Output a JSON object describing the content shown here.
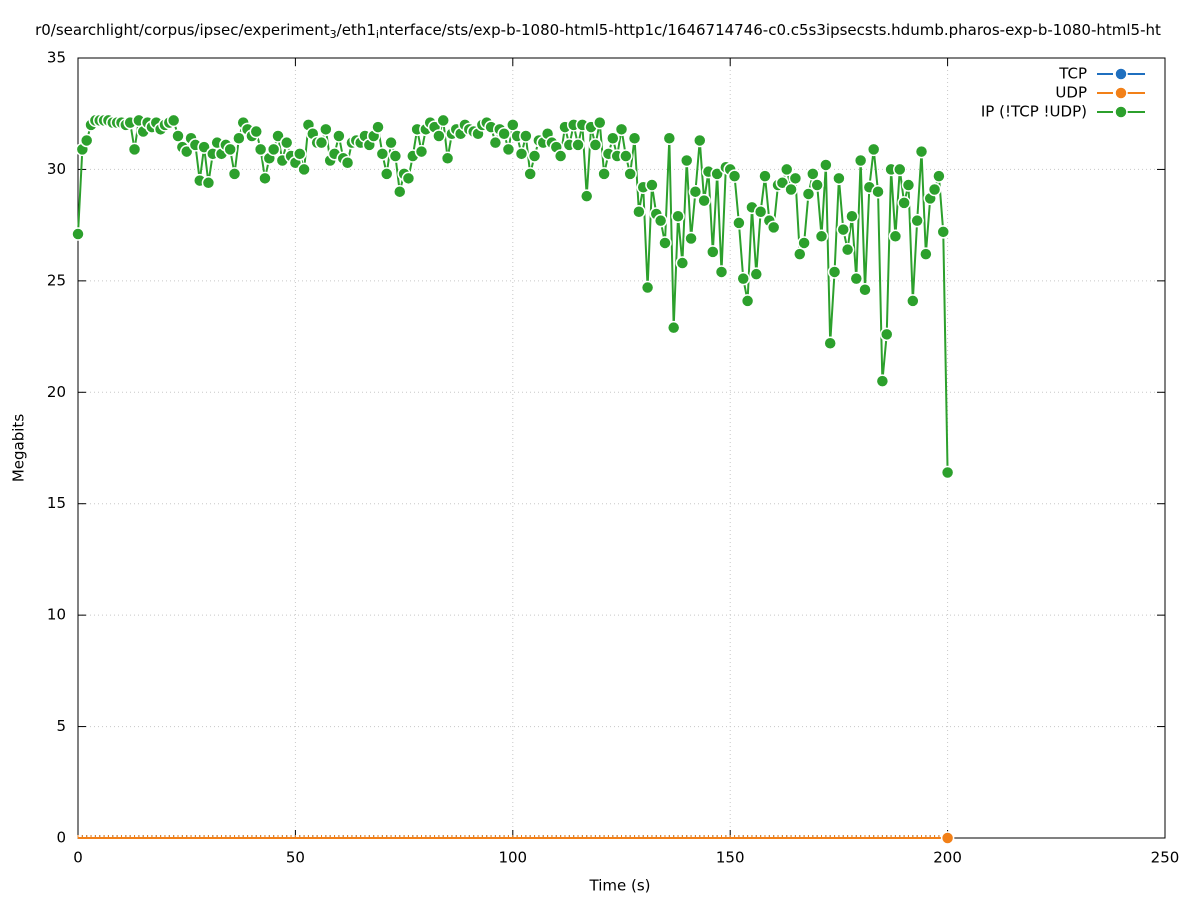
{
  "chart_data": {
    "type": "line",
    "title": [
      "r0/searchlight/corpus/ipsec/experiment",
      "3",
      "/eth1",
      "i",
      "nterface/sts/exp-b-1080-html5-http1c/1646714746-c0.c5s3ipsecsts.hdumb.pharos-exp-b-1080-html5-ht"
    ],
    "xlabel": "Time (s)",
    "ylabel": "Megabits",
    "xlim": [
      0,
      250
    ],
    "xticks": [
      0,
      50,
      100,
      150,
      200,
      250
    ],
    "ylim": [
      0,
      35
    ],
    "yticks": [
      0,
      5,
      10,
      15,
      20,
      25,
      30,
      35
    ],
    "grid": true,
    "legend": "top-right",
    "x": [
      0,
      1,
      2,
      3,
      4,
      5,
      6,
      7,
      8,
      9,
      10,
      11,
      12,
      13,
      14,
      15,
      16,
      17,
      18,
      19,
      20,
      21,
      22,
      23,
      24,
      25,
      26,
      27,
      28,
      29,
      30,
      31,
      32,
      33,
      34,
      35,
      36,
      37,
      38,
      39,
      40,
      41,
      42,
      43,
      44,
      45,
      46,
      47,
      48,
      49,
      50,
      51,
      52,
      53,
      54,
      55,
      56,
      57,
      58,
      59,
      60,
      61,
      62,
      63,
      64,
      65,
      66,
      67,
      68,
      69,
      70,
      71,
      72,
      73,
      74,
      75,
      76,
      77,
      78,
      79,
      80,
      81,
      82,
      83,
      84,
      85,
      86,
      87,
      88,
      89,
      90,
      91,
      92,
      93,
      94,
      95,
      96,
      97,
      98,
      99,
      100,
      101,
      102,
      103,
      104,
      105,
      106,
      107,
      108,
      109,
      110,
      111,
      112,
      113,
      114,
      115,
      116,
      117,
      118,
      119,
      120,
      121,
      122,
      123,
      124,
      125,
      126,
      127,
      128,
      129,
      130,
      131,
      132,
      133,
      134,
      135,
      136,
      137,
      138,
      139,
      140,
      141,
      142,
      143,
      144,
      145,
      146,
      147,
      148,
      149,
      150,
      151,
      152,
      153,
      154,
      155,
      156,
      157,
      158,
      159,
      160,
      161,
      162,
      163,
      164,
      165,
      166,
      167,
      168,
      169,
      170,
      171,
      172,
      173,
      174,
      175,
      176,
      177,
      178,
      179,
      180,
      181,
      182,
      183,
      184,
      185,
      186,
      187,
      188,
      189,
      190,
      191,
      192,
      193,
      194,
      195,
      196,
      197,
      198,
      199,
      200
    ],
    "series": [
      {
        "name": "TCP",
        "color": "#1f6fbf",
        "values": [
          0,
          0,
          0,
          0,
          0,
          0,
          0,
          0,
          0,
          0,
          0,
          0,
          0,
          0,
          0,
          0,
          0,
          0,
          0,
          0,
          0,
          0,
          0,
          0,
          0,
          0,
          0,
          0,
          0,
          0,
          0,
          0,
          0,
          0,
          0,
          0,
          0,
          0,
          0,
          0,
          0,
          0,
          0,
          0,
          0,
          0,
          0,
          0,
          0,
          0,
          0,
          0,
          0,
          0,
          0,
          0,
          0,
          0,
          0,
          0,
          0,
          0,
          0,
          0,
          0,
          0,
          0,
          0,
          0,
          0,
          0,
          0,
          0,
          0,
          0,
          0,
          0,
          0,
          0,
          0,
          0,
          0,
          0,
          0,
          0,
          0,
          0,
          0,
          0,
          0,
          0,
          0,
          0,
          0,
          0,
          0,
          0,
          0,
          0,
          0,
          0,
          0,
          0,
          0,
          0,
          0,
          0,
          0,
          0,
          0,
          0,
          0,
          0,
          0,
          0,
          0,
          0,
          0,
          0,
          0,
          0,
          0,
          0,
          0,
          0,
          0,
          0,
          0,
          0,
          0,
          0,
          0,
          0,
          0,
          0,
          0,
          0,
          0,
          0,
          0,
          0,
          0,
          0,
          0,
          0,
          0,
          0,
          0,
          0,
          0,
          0,
          0,
          0,
          0,
          0,
          0,
          0,
          0,
          0,
          0,
          0,
          0,
          0,
          0,
          0,
          0,
          0,
          0,
          0,
          0,
          0,
          0,
          0,
          0,
          0,
          0,
          0,
          0,
          0,
          0,
          0,
          0,
          0,
          0,
          0,
          0,
          0,
          0,
          0,
          0,
          0,
          0,
          0,
          0,
          0,
          0,
          0,
          0,
          0,
          0,
          0
        ]
      },
      {
        "name": "UDP",
        "color": "#f28018",
        "values": [
          0,
          0,
          0,
          0,
          0,
          0,
          0,
          0,
          0,
          0,
          0,
          0,
          0,
          0,
          0,
          0,
          0,
          0,
          0,
          0,
          0,
          0,
          0,
          0,
          0,
          0,
          0,
          0,
          0,
          0,
          0,
          0,
          0,
          0,
          0,
          0,
          0,
          0,
          0,
          0,
          0,
          0,
          0,
          0,
          0,
          0,
          0,
          0,
          0,
          0,
          0,
          0,
          0,
          0,
          0,
          0,
          0,
          0,
          0,
          0,
          0,
          0,
          0,
          0,
          0,
          0,
          0,
          0,
          0,
          0,
          0,
          0,
          0,
          0,
          0,
          0,
          0,
          0,
          0,
          0,
          0,
          0,
          0,
          0,
          0,
          0,
          0,
          0,
          0,
          0,
          0,
          0,
          0,
          0,
          0,
          0,
          0,
          0,
          0,
          0,
          0,
          0,
          0,
          0,
          0,
          0,
          0,
          0,
          0,
          0,
          0,
          0,
          0,
          0,
          0,
          0,
          0,
          0,
          0,
          0,
          0,
          0,
          0,
          0,
          0,
          0,
          0,
          0,
          0,
          0,
          0,
          0,
          0,
          0,
          0,
          0,
          0,
          0,
          0,
          0,
          0,
          0,
          0,
          0,
          0,
          0,
          0,
          0,
          0,
          0,
          0,
          0,
          0,
          0,
          0,
          0,
          0,
          0,
          0,
          0,
          0,
          0,
          0,
          0,
          0,
          0,
          0,
          0,
          0,
          0,
          0,
          0,
          0,
          0,
          0,
          0,
          0,
          0,
          0,
          0,
          0,
          0,
          0,
          0,
          0,
          0,
          0,
          0,
          0,
          0,
          0,
          0,
          0,
          0,
          0,
          0,
          0,
          0,
          0,
          0,
          0
        ]
      },
      {
        "name": "IP (!TCP  !UDP)",
        "color": "#2ca02c",
        "values": [
          27.1,
          30.9,
          31.3,
          32.0,
          32.2,
          32.2,
          32.2,
          32.2,
          32.1,
          32.1,
          32.1,
          32.0,
          32.1,
          30.9,
          32.2,
          31.7,
          32.1,
          31.9,
          32.1,
          31.8,
          32.0,
          32.1,
          32.2,
          31.5,
          31.0,
          30.8,
          31.4,
          31.1,
          29.5,
          31.0,
          29.4,
          30.7,
          31.2,
          30.7,
          31.1,
          30.9,
          29.8,
          31.4,
          32.1,
          31.8,
          31.5,
          31.7,
          30.9,
          29.6,
          30.5,
          30.9,
          31.5,
          30.4,
          31.2,
          30.6,
          30.3,
          30.7,
          30.0,
          32.0,
          31.6,
          31.2,
          31.2,
          31.8,
          30.4,
          30.7,
          31.5,
          30.5,
          30.3,
          31.2,
          31.3,
          31.2,
          31.5,
          31.1,
          31.5,
          31.9,
          30.7,
          29.8,
          31.2,
          30.6,
          29.0,
          29.8,
          29.6,
          30.6,
          31.8,
          30.8,
          31.8,
          32.1,
          31.9,
          31.5,
          32.2,
          30.5,
          31.6,
          31.8,
          31.6,
          32.0,
          31.8,
          31.7,
          31.6,
          32.0,
          32.1,
          31.9,
          31.2,
          31.8,
          31.6,
          30.9,
          32.0,
          31.5,
          30.7,
          31.5,
          29.8,
          30.6,
          31.3,
          31.2,
          31.6,
          31.2,
          31.0,
          30.6,
          31.9,
          31.1,
          32.0,
          31.1,
          32.0,
          28.8,
          31.9,
          31.1,
          32.1,
          29.8,
          30.7,
          31.4,
          30.6,
          31.8,
          30.6,
          29.8,
          31.4,
          28.1,
          29.2,
          24.7,
          29.3,
          28.0,
          27.7,
          26.7,
          31.4,
          22.9,
          27.9,
          25.8,
          30.4,
          26.9,
          29.0,
          31.3,
          28.6,
          29.9,
          26.3,
          29.8,
          25.4,
          30.1,
          30.0,
          29.7,
          27.6,
          25.1,
          24.1,
          28.3,
          25.3,
          28.1,
          29.7,
          27.7,
          27.4,
          29.3,
          29.4,
          30.0,
          29.1,
          29.6,
          26.2,
          26.7,
          28.9,
          29.8,
          29.3,
          27.0,
          30.2,
          22.2,
          25.4,
          29.6,
          27.3,
          26.4,
          27.9,
          25.1,
          30.4,
          24.6,
          29.2,
          30.9,
          29.0,
          20.5,
          22.6,
          30.0,
          27.0,
          30.0,
          28.5,
          29.3,
          24.1,
          27.7,
          30.8,
          26.2,
          28.7,
          29.1,
          29.7,
          27.2,
          16.4
        ]
      }
    ]
  }
}
